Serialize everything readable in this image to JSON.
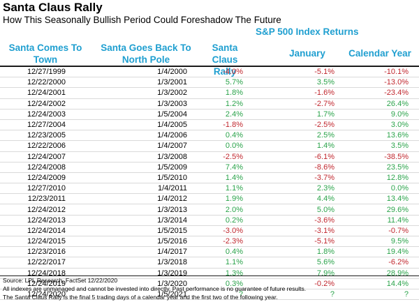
{
  "title": "Santa Claus Rally",
  "subtitle": "How This Seasonally Bullish Period Could Foreshadow The Future",
  "group_header": "S&P 500 Index Returns",
  "columns": {
    "santa_comes": "Santa Comes To Town",
    "santa_goes": "Santa Goes Back To North Pole",
    "rally": "Santa Claus Rally",
    "january": "January",
    "calendar_year": "Calendar Year"
  },
  "colors": {
    "header": "#1f9fd0",
    "positive": "#2aa34a",
    "negative": "#c0262d"
  },
  "rows": [
    {
      "start": "12/27/1999",
      "end": "1/4/2000",
      "rally": "-4.0%",
      "january": "-5.1%",
      "year": "-10.1%"
    },
    {
      "start": "12/22/2000",
      "end": "1/3/2001",
      "rally": "5.7%",
      "january": "3.5%",
      "year": "-13.0%"
    },
    {
      "start": "12/24/2001",
      "end": "1/3/2002",
      "rally": "1.8%",
      "january": "-1.6%",
      "year": "-23.4%"
    },
    {
      "start": "12/24/2002",
      "end": "1/3/2003",
      "rally": "1.2%",
      "january": "-2.7%",
      "year": "26.4%"
    },
    {
      "start": "12/24/2003",
      "end": "1/5/2004",
      "rally": "2.4%",
      "january": "1.7%",
      "year": "9.0%"
    },
    {
      "start": "12/27/2004",
      "end": "1/4/2005",
      "rally": "-1.8%",
      "january": "-2.5%",
      "year": "3.0%"
    },
    {
      "start": "12/23/2005",
      "end": "1/4/2006",
      "rally": "0.4%",
      "january": "2.5%",
      "year": "13.6%"
    },
    {
      "start": "12/22/2006",
      "end": "1/4/2007",
      "rally": "0.0%",
      "january": "1.4%",
      "year": "3.5%"
    },
    {
      "start": "12/24/2007",
      "end": "1/3/2008",
      "rally": "-2.5%",
      "january": "-6.1%",
      "year": "-38.5%"
    },
    {
      "start": "12/24/2008",
      "end": "1/5/2009",
      "rally": "7.4%",
      "january": "-8.6%",
      "year": "23.5%"
    },
    {
      "start": "12/24/2009",
      "end": "1/5/2010",
      "rally": "1.4%",
      "january": "-3.7%",
      "year": "12.8%"
    },
    {
      "start": "12/27/2010",
      "end": "1/4/2011",
      "rally": "1.1%",
      "january": "2.3%",
      "year": "0.0%"
    },
    {
      "start": "12/23/2011",
      "end": "1/4/2012",
      "rally": "1.9%",
      "january": "4.4%",
      "year": "13.4%"
    },
    {
      "start": "12/24/2012",
      "end": "1/3/2013",
      "rally": "2.0%",
      "january": "5.0%",
      "year": "29.6%"
    },
    {
      "start": "12/24/2013",
      "end": "1/3/2014",
      "rally": "0.2%",
      "january": "-3.6%",
      "year": "11.4%"
    },
    {
      "start": "12/24/2014",
      "end": "1/5/2015",
      "rally": "-3.0%",
      "january": "-3.1%",
      "year": "-0.7%"
    },
    {
      "start": "12/24/2015",
      "end": "1/5/2016",
      "rally": "-2.3%",
      "january": "-5.1%",
      "year": "9.5%"
    },
    {
      "start": "12/23/2016",
      "end": "1/4/2017",
      "rally": "0.4%",
      "january": "1.8%",
      "year": "19.4%"
    },
    {
      "start": "12/22/2017",
      "end": "1/3/2018",
      "rally": "1.1%",
      "january": "5.6%",
      "year": "-6.2%"
    },
    {
      "start": "12/24/2018",
      "end": "1/3/2019",
      "rally": "1.3%",
      "january": "7.9%",
      "year": "28.9%"
    },
    {
      "start": "12/24/2019",
      "end": "1/3/2020",
      "rally": "0.3%",
      "january": "-0.2%",
      "year": "14.4%"
    },
    {
      "start": "12/24/2020",
      "end": "1/5/2021",
      "rally": "?",
      "january": "?",
      "year": "?"
    }
  ],
  "footnotes": {
    "source": "Source: LPL Research, FactSet 12/22/2020",
    "disclaimer": "All indexes are unmanaged and cannot be invested into directly. Past performance is no guarantee of future results.",
    "definition": "The Santa Claus Rally is the final 5 trading days of a calendar year and the first two of the following year."
  }
}
